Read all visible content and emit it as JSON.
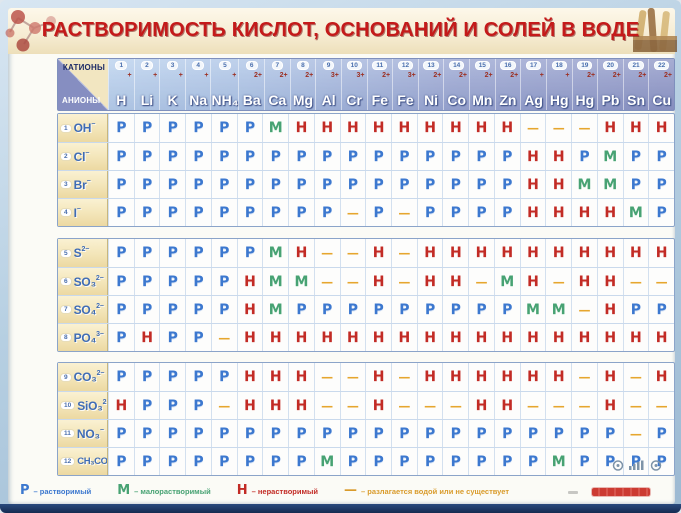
{
  "header": {
    "cations_label": "КАТИОНЫ",
    "anions_label": "АНИОНЫ"
  },
  "chart_data": {
    "type": "table",
    "title": "РАСТВОРИМОСТЬ КИСЛОТ, ОСНОВАНИЙ И СОЛЕЙ В ВОДЕ",
    "value_symbols": {
      "soluble": "Р",
      "slightly_soluble": "М",
      "insoluble": "Н",
      "decomposes_or_not_exists": "—"
    },
    "columns": [
      {
        "num": "1",
        "symbol": "H",
        "charge": "+"
      },
      {
        "num": "2",
        "symbol": "Li",
        "charge": "+"
      },
      {
        "num": "3",
        "symbol": "K",
        "charge": "+"
      },
      {
        "num": "4",
        "symbol": "Na",
        "charge": "+"
      },
      {
        "num": "5",
        "symbol": "NH₄",
        "charge": "+"
      },
      {
        "num": "6",
        "symbol": "Ba",
        "charge": "2+"
      },
      {
        "num": "7",
        "symbol": "Ca",
        "charge": "2+"
      },
      {
        "num": "8",
        "symbol": "Mg",
        "charge": "2+"
      },
      {
        "num": "9",
        "symbol": "Al",
        "charge": "3+"
      },
      {
        "num": "10",
        "symbol": "Cr",
        "charge": "3+"
      },
      {
        "num": "11",
        "symbol": "Fe",
        "charge": "2+"
      },
      {
        "num": "12",
        "symbol": "Fe",
        "charge": "3+"
      },
      {
        "num": "13",
        "symbol": "Ni",
        "charge": "2+"
      },
      {
        "num": "14",
        "symbol": "Co",
        "charge": "2+"
      },
      {
        "num": "15",
        "symbol": "Mn",
        "charge": "2+"
      },
      {
        "num": "16",
        "symbol": "Zn",
        "charge": "2+"
      },
      {
        "num": "17",
        "symbol": "Ag",
        "charge": "+"
      },
      {
        "num": "18",
        "symbol": "Hg",
        "charge": "+"
      },
      {
        "num": "19",
        "symbol": "Hg",
        "charge": "2+"
      },
      {
        "num": "20",
        "symbol": "Pb",
        "charge": "2+"
      },
      {
        "num": "21",
        "symbol": "Sn",
        "charge": "2+"
      },
      {
        "num": "22",
        "symbol": "Cu",
        "charge": "2+"
      }
    ],
    "rows": [
      {
        "num": "1",
        "formula": "OH",
        "charge": "−",
        "values": [
          "Р",
          "Р",
          "Р",
          "Р",
          "Р",
          "Р",
          "М",
          "Н",
          "Н",
          "Н",
          "Н",
          "Н",
          "Н",
          "Н",
          "Н",
          "Н",
          "—",
          "—",
          "—",
          "Н",
          "Н",
          "Н"
        ]
      },
      {
        "num": "2",
        "formula": "Cl",
        "charge": "−",
        "values": [
          "Р",
          "Р",
          "Р",
          "Р",
          "Р",
          "Р",
          "Р",
          "Р",
          "Р",
          "Р",
          "Р",
          "Р",
          "Р",
          "Р",
          "Р",
          "Р",
          "Н",
          "Н",
          "Р",
          "М",
          "Р",
          "Р"
        ]
      },
      {
        "num": "3",
        "formula": "Br",
        "charge": "−",
        "values": [
          "Р",
          "Р",
          "Р",
          "Р",
          "Р",
          "Р",
          "Р",
          "Р",
          "Р",
          "Р",
          "Р",
          "Р",
          "Р",
          "Р",
          "Р",
          "Р",
          "Н",
          "Н",
          "М",
          "М",
          "Р",
          "Р"
        ]
      },
      {
        "num": "4",
        "formula": "I",
        "charge": "−",
        "values": [
          "Р",
          "Р",
          "Р",
          "Р",
          "Р",
          "Р",
          "Р",
          "Р",
          "Р",
          "—",
          "Р",
          "—",
          "Р",
          "Р",
          "Р",
          "Р",
          "Н",
          "Н",
          "Н",
          "Н",
          "М",
          "Р"
        ]
      },
      {
        "num": "5",
        "formula": "S",
        "charge": "2−",
        "values": [
          "Р",
          "Р",
          "Р",
          "Р",
          "Р",
          "Р",
          "М",
          "Н",
          "—",
          "—",
          "Н",
          "—",
          "Н",
          "Н",
          "Н",
          "Н",
          "Н",
          "Н",
          "Н",
          "Н",
          "Н",
          "Н"
        ]
      },
      {
        "num": "6",
        "formula": "SO₃",
        "charge": "2−",
        "values": [
          "Р",
          "Р",
          "Р",
          "Р",
          "Р",
          "Н",
          "М",
          "М",
          "—",
          "—",
          "Н",
          "—",
          "Н",
          "Н",
          "—",
          "М",
          "Н",
          "—",
          "Н",
          "Н",
          "—",
          "—"
        ]
      },
      {
        "num": "7",
        "formula": "SO₄",
        "charge": "2−",
        "values": [
          "Р",
          "Р",
          "Р",
          "Р",
          "Р",
          "Н",
          "М",
          "Р",
          "Р",
          "Р",
          "Р",
          "Р",
          "Р",
          "Р",
          "Р",
          "Р",
          "М",
          "М",
          "—",
          "Н",
          "Р",
          "Р"
        ]
      },
      {
        "num": "8",
        "formula": "PO₄",
        "charge": "3−",
        "values": [
          "Р",
          "Н",
          "Р",
          "Р",
          "—",
          "Н",
          "Н",
          "Н",
          "Н",
          "Н",
          "Н",
          "Н",
          "Н",
          "Н",
          "Н",
          "Н",
          "Н",
          "Н",
          "Н",
          "Н",
          "Н",
          "Н"
        ]
      },
      {
        "num": "9",
        "formula": "CO₃",
        "charge": "2−",
        "values": [
          "Р",
          "Р",
          "Р",
          "Р",
          "Р",
          "Н",
          "Н",
          "Н",
          "—",
          "—",
          "Н",
          "—",
          "Н",
          "Н",
          "Н",
          "Н",
          "Н",
          "Н",
          "—",
          "Н",
          "—",
          "Н"
        ]
      },
      {
        "num": "10",
        "formula": "SiO₃",
        "charge": "2−",
        "values": [
          "Н",
          "Р",
          "Р",
          "Р",
          "—",
          "Н",
          "Н",
          "Н",
          "—",
          "—",
          "Н",
          "—",
          "—",
          "—",
          "Н",
          "Н",
          "—",
          "—",
          "—",
          "Н",
          "—",
          "—"
        ]
      },
      {
        "num": "11",
        "formula": "NO₃",
        "charge": "−",
        "values": [
          "Р",
          "Р",
          "Р",
          "Р",
          "Р",
          "Р",
          "Р",
          "Р",
          "Р",
          "Р",
          "Р",
          "Р",
          "Р",
          "Р",
          "Р",
          "Р",
          "Р",
          "Р",
          "Р",
          "Р",
          "—",
          "Р"
        ]
      },
      {
        "num": "12",
        "formula": "CH₃COO",
        "charge": "−",
        "values": [
          "Р",
          "Р",
          "Р",
          "Р",
          "Р",
          "Р",
          "Р",
          "Р",
          "М",
          "Р",
          "Р",
          "Р",
          "Р",
          "Р",
          "Р",
          "Р",
          "Р",
          "М",
          "Р",
          "Р",
          "Р",
          "Р"
        ]
      }
    ]
  },
  "legend": {
    "items": [
      {
        "symbol": "Р",
        "label": "–  растворимый"
      },
      {
        "symbol": "М",
        "label": "–  малорастворимый"
      },
      {
        "symbol": "Н",
        "label": "–  нерастворимый"
      },
      {
        "symbol": "—",
        "label": "–  разлагается водой или не существует"
      }
    ]
  },
  "colors": {
    "soluble": "#3c78cf",
    "slightly_soluble": "#47a273",
    "insoluble": "#c22b25",
    "decomposes": "#e6a62e",
    "title_red": "#c41a1a",
    "header_blue": "#a9c0e2",
    "header_violet": "#8e96c6",
    "anion_cell_beige": "#f3e5b8"
  }
}
